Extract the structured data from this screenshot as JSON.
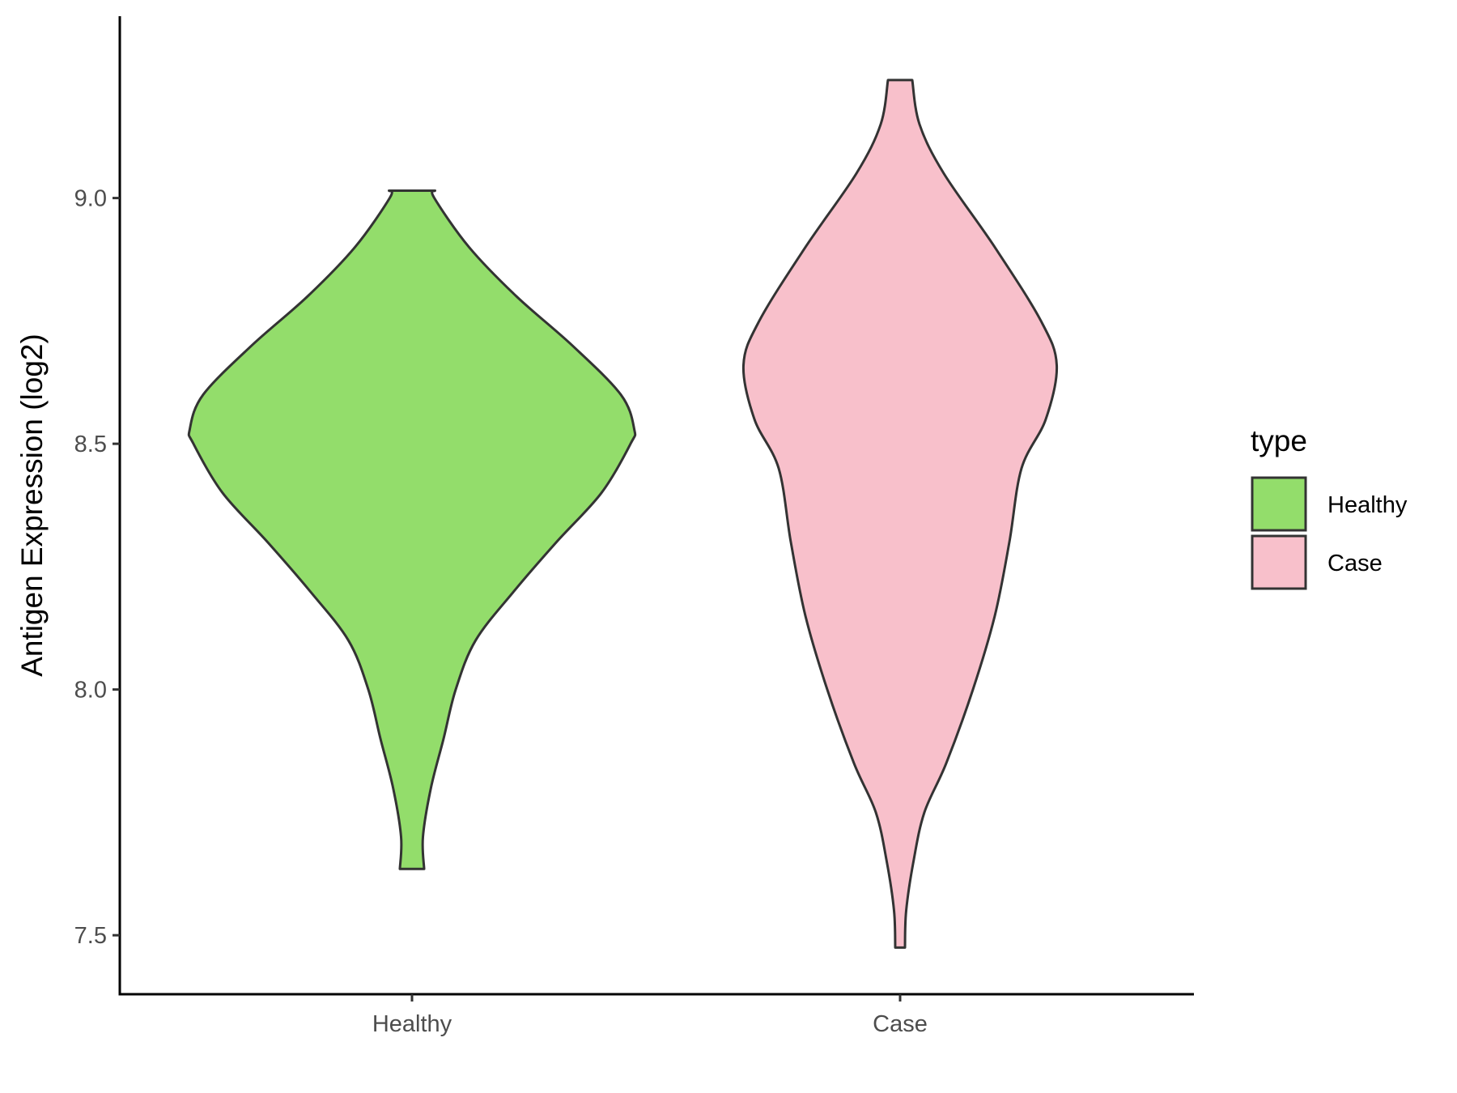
{
  "chart_data": {
    "type": "violin",
    "ylabel": "Antigen Expression (log2)",
    "xlabel": "",
    "categories": [
      "Healthy",
      "Case"
    ],
    "ylim": [
      7.38,
      9.37
    ],
    "yticks": [
      7.5,
      8.0,
      8.5,
      9.0
    ],
    "ytick_labels": [
      "7.5",
      "8.0",
      "8.5",
      "9.0"
    ],
    "grid": false,
    "legend": {
      "title": "type",
      "position": "right",
      "entries": [
        {
          "label": "Healthy",
          "color": "#93dd6b"
        },
        {
          "label": "Case",
          "color": "#f8c0cb"
        }
      ]
    },
    "series": [
      {
        "category": "Healthy",
        "color": "#93dd6b",
        "min": 7.635,
        "max": 9.015,
        "profile": [
          [
            7.635,
            0.05
          ],
          [
            7.7,
            0.045
          ],
          [
            7.8,
            0.078
          ],
          [
            7.9,
            0.13
          ],
          [
            8.0,
            0.18
          ],
          [
            8.1,
            0.262
          ],
          [
            8.2,
            0.42
          ],
          [
            8.3,
            0.595
          ],
          [
            8.4,
            0.78
          ],
          [
            8.5,
            0.9
          ],
          [
            8.53,
            0.915
          ],
          [
            8.6,
            0.86
          ],
          [
            8.7,
            0.66
          ],
          [
            8.8,
            0.43
          ],
          [
            8.9,
            0.235
          ],
          [
            9.0,
            0.092
          ],
          [
            9.015,
            0.095
          ]
        ]
      },
      {
        "category": "Case",
        "color": "#f8c0cb",
        "min": 7.475,
        "max": 9.24,
        "profile": [
          [
            7.475,
            0.02
          ],
          [
            7.55,
            0.025
          ],
          [
            7.65,
            0.055
          ],
          [
            7.75,
            0.1
          ],
          [
            7.85,
            0.19
          ],
          [
            8.0,
            0.3
          ],
          [
            8.15,
            0.39
          ],
          [
            8.3,
            0.45
          ],
          [
            8.45,
            0.5
          ],
          [
            8.55,
            0.6
          ],
          [
            8.66,
            0.645
          ],
          [
            8.75,
            0.58
          ],
          [
            8.9,
            0.39
          ],
          [
            9.05,
            0.18
          ],
          [
            9.15,
            0.08
          ],
          [
            9.24,
            0.05
          ]
        ]
      }
    ]
  }
}
